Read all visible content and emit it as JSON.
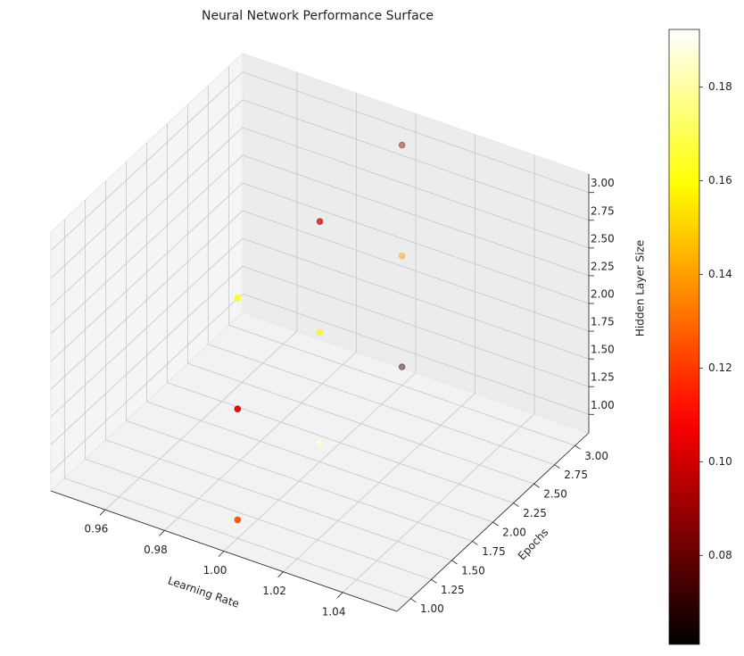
{
  "chart_data": {
    "type": "scatter3d",
    "title": "Neural Network Performance Surface",
    "xlabel": "Learning Rate",
    "ylabel": "Epochs",
    "zlabel": "Hidden Layer Size",
    "x": [
      1.0,
      1.0,
      1.0,
      1.0,
      1.0,
      1.0,
      1.0,
      1.0,
      1.0
    ],
    "y": [
      1,
      2,
      3,
      1,
      2,
      3,
      1,
      2,
      3
    ],
    "z": [
      1,
      1,
      1,
      2,
      2,
      2,
      3,
      3,
      3
    ],
    "values": [
      0.125,
      0.186,
      0.068,
      0.104,
      0.157,
      0.139,
      0.161,
      0.098,
      0.087
    ],
    "colormap": "hot",
    "clim": [
      0.061,
      0.1923
    ],
    "xlim": [
      0.9417,
      1.0583
    ],
    "ylim": [
      0.8333,
      3.1667
    ],
    "zlim": [
      0.8333,
      3.1667
    ],
    "xticks": [
      0.96,
      0.98,
      {
        "value": 1.0,
        "label": "1.00"
      },
      1.02,
      1.04
    ],
    "yticks": [
      {
        "value": 1.0,
        "label": "1.00"
      },
      1.25,
      {
        "value": 1.5,
        "label": "1.50"
      },
      1.75,
      {
        "value": 2.0,
        "label": "2.00"
      },
      2.25,
      {
        "value": 2.5,
        "label": "2.50"
      },
      2.75,
      {
        "value": 3.0,
        "label": "3.00"
      }
    ],
    "zticks": [
      {
        "value": 1.0,
        "label": "1.00"
      },
      1.25,
      {
        "value": 1.5,
        "label": "1.50"
      },
      1.75,
      {
        "value": 2.0,
        "label": "2.00"
      },
      2.25,
      {
        "value": 2.5,
        "label": "2.50"
      },
      2.75,
      {
        "value": 3.0,
        "label": "3.00"
      }
    ],
    "cticks": [
      0.08,
      {
        "value": 0.1,
        "label": "0.10"
      },
      0.12,
      0.14,
      0.16,
      0.18
    ],
    "grid": true
  }
}
